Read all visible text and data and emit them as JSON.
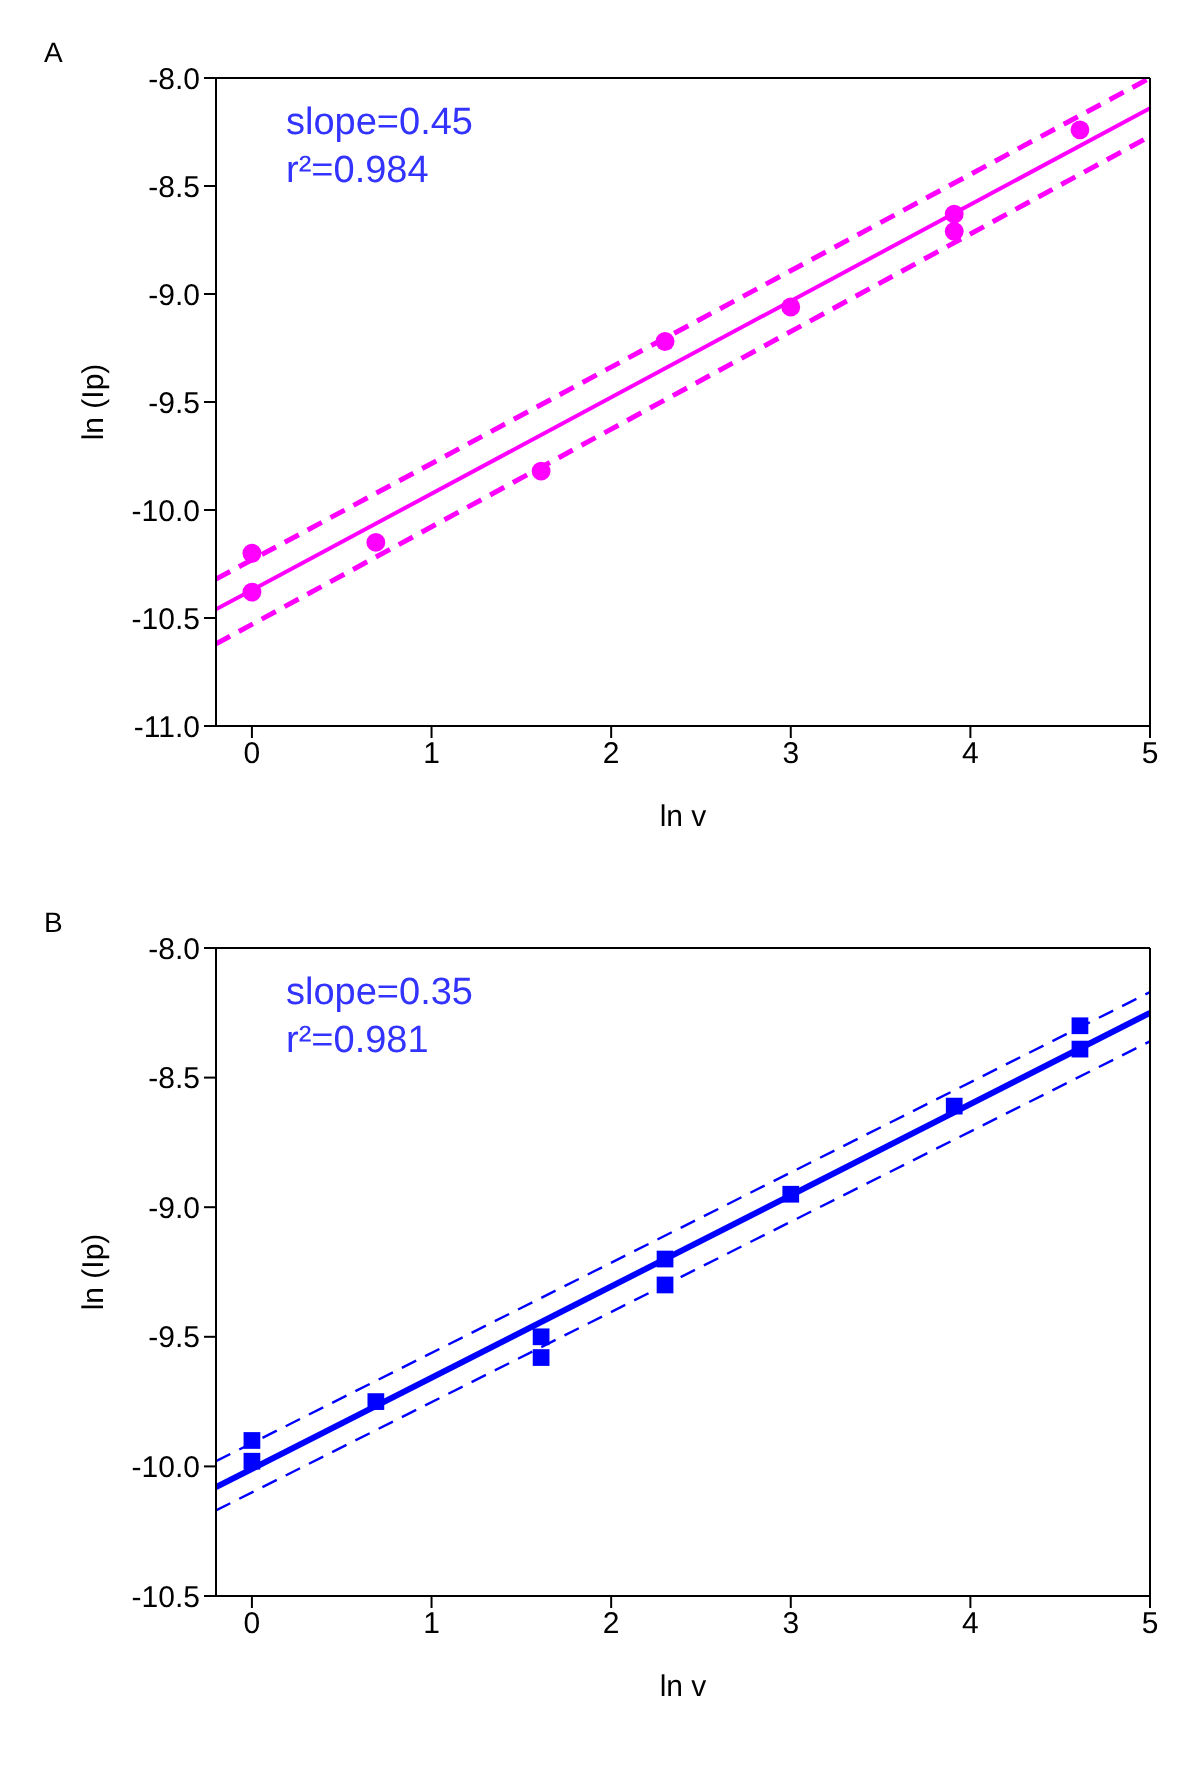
{
  "chart_data": [
    {
      "type": "scatter",
      "title": "A",
      "xlabel": "ln v",
      "ylabel": "ln (Ip)",
      "annotations": [
        "slope=0.45",
        "r²=0.984"
      ],
      "xlim": [
        -0.2,
        5
      ],
      "ylim": [
        -11,
        -8
      ],
      "xticks": [
        0,
        1,
        2,
        3,
        4,
        5
      ],
      "yticks": [
        {
          "value": -11,
          "label": "-11.0"
        },
        {
          "value": -10.5,
          "label": "-10.5"
        },
        {
          "value": -10,
          "label": "-10.0"
        },
        {
          "value": -9.5,
          "label": "-9.5"
        },
        {
          "value": -9,
          "label": "-9.0"
        },
        {
          "value": -8.5,
          "label": "-8.5"
        },
        {
          "value": -8,
          "label": "-8.0"
        }
      ],
      "series": [
        {
          "type": "line",
          "color": "#ff00ff",
          "line_style": "dashed",
          "x": [
            -0.2,
            5
          ],
          "values": [
            -10.32,
            -8.0
          ]
        },
        {
          "type": "line",
          "color": "#ff00ff",
          "line_style": "dashed",
          "x": [
            -0.2,
            5
          ],
          "values": [
            -10.62,
            -8.27
          ]
        },
        {
          "type": "line",
          "color": "#ff00ff",
          "line_style": "solid",
          "x": [
            -0.2,
            5
          ],
          "values": [
            -10.46,
            -8.14
          ]
        },
        {
          "color": "#ff00ff",
          "marker": "circle",
          "x": [
            0,
            0,
            0.69,
            1.61,
            2.3,
            3.0,
            3.91,
            3.91,
            4.61
          ],
          "values": [
            -10.2,
            -10.38,
            -10.15,
            -9.82,
            -9.22,
            -9.06,
            -8.63,
            -8.71,
            -8.24
          ]
        }
      ]
    },
    {
      "type": "scatter",
      "title": "B",
      "xlabel": "ln v",
      "ylabel": "ln (Ip)",
      "annotations": [
        "slope=0.35",
        "r²=0.981"
      ],
      "xlim": [
        -0.2,
        5
      ],
      "ylim": [
        -10.5,
        -8
      ],
      "xticks": [
        0,
        1,
        2,
        3,
        4,
        5
      ],
      "yticks": [
        {
          "value": -10.5,
          "label": "-10.5"
        },
        {
          "value": -10,
          "label": "-10.0"
        },
        {
          "value": -9.5,
          "label": "-9.5"
        },
        {
          "value": -9,
          "label": "-9.0"
        },
        {
          "value": -8.5,
          "label": "-8.5"
        },
        {
          "value": -8,
          "label": "-8.0"
        }
      ],
      "series": [
        {
          "type": "line",
          "color": "#0000ff",
          "line_style": "dashed",
          "x": [
            -0.2,
            5
          ],
          "values": [
            -9.98,
            -8.17
          ]
        },
        {
          "type": "line",
          "color": "#0000ff",
          "line_style": "dashed",
          "x": [
            -0.2,
            5
          ],
          "values": [
            -10.17,
            -8.36
          ]
        },
        {
          "type": "line",
          "color": "#0000ff",
          "line_style": "solid",
          "x": [
            -0.2,
            5
          ],
          "values": [
            -10.08,
            -8.25
          ]
        },
        {
          "color": "#0000ff",
          "marker": "square",
          "x": [
            0,
            0,
            0.69,
            1.61,
            1.61,
            2.3,
            2.3,
            3.0,
            3.91,
            4.61,
            4.61
          ],
          "values": [
            -9.9,
            -9.98,
            -9.75,
            -9.5,
            -9.58,
            -9.2,
            -9.3,
            -8.95,
            -8.61,
            -8.3,
            -8.39
          ]
        }
      ]
    }
  ]
}
